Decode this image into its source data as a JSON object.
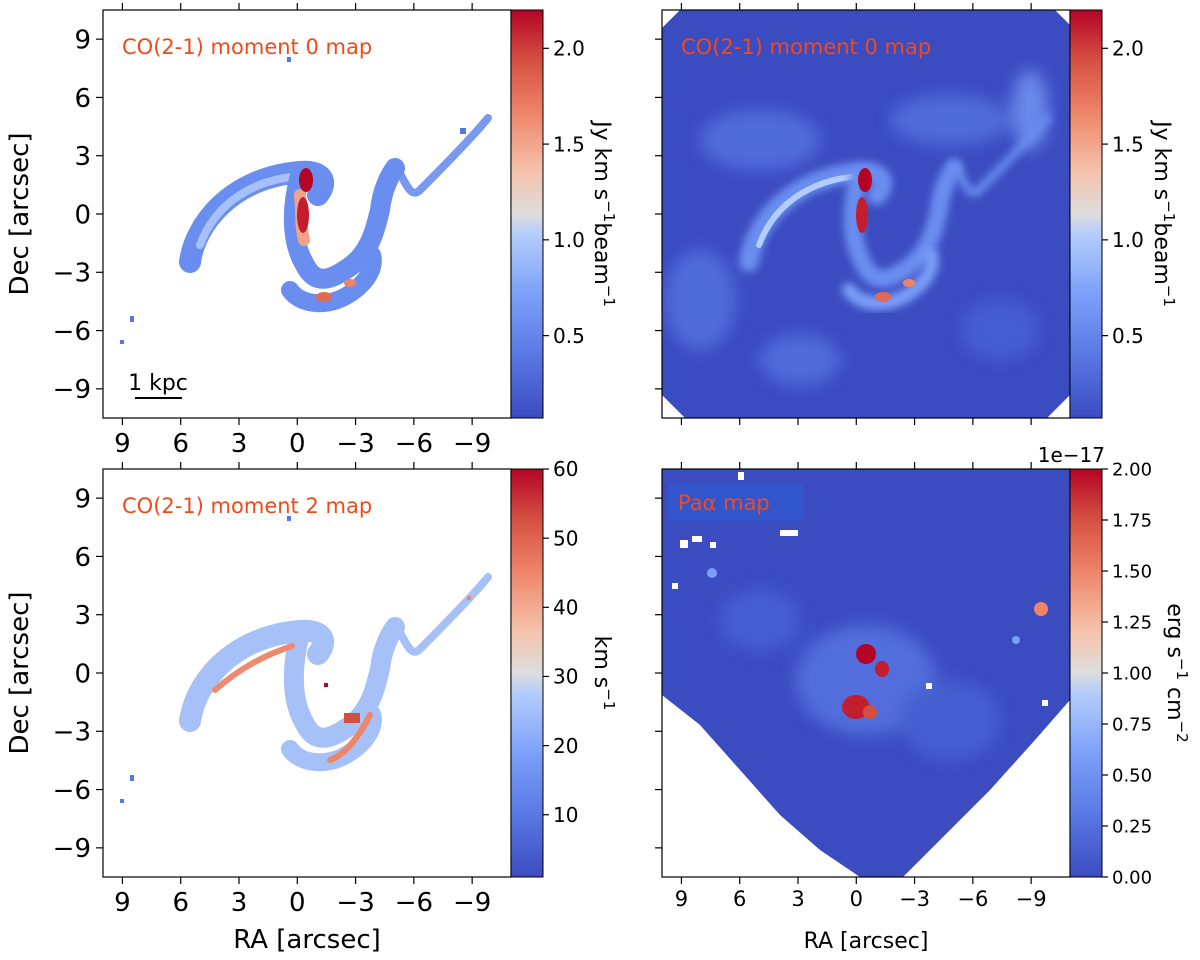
{
  "colors": {
    "map_low": "#3b4cc0",
    "map_mid": "#dddddd",
    "map_high": "#b40426",
    "label_text": "#f04a1a",
    "label_box": "#3355cc",
    "axis": "#000000"
  },
  "chart_data": [
    {
      "type": "heatmap",
      "panel": "top-left",
      "title": "CO(2-1) moment 0 map",
      "xlabel": "",
      "ylabel": "Dec [arcsec]",
      "xlim": [
        10,
        -11
      ],
      "ylim": [
        -10.5,
        10.5
      ],
      "x_ticks": [
        "9",
        "6",
        "3",
        "0",
        "−3",
        "−6",
        "−9"
      ],
      "y_ticks": [
        "9",
        "6",
        "3",
        "0",
        "−3",
        "−6",
        "−9"
      ],
      "x_tick_values": [
        9,
        6,
        3,
        0,
        -3,
        -6,
        -9
      ],
      "y_tick_values": [
        9,
        6,
        3,
        0,
        -3,
        -6,
        -9
      ],
      "background": "masked",
      "scalebar": "1 kpc",
      "colorbar": {
        "label_parts": [
          "Jy km s",
          "−1",
          "beam",
          "−1"
        ],
        "ticks": [
          "0.5",
          "1.0",
          "1.5",
          "2.0"
        ],
        "tick_values": [
          0.5,
          1.0,
          1.5,
          2.0
        ],
        "range": [
          0.07,
          2.2
        ],
        "offset": ""
      }
    },
    {
      "type": "heatmap",
      "panel": "top-right",
      "title": "CO(2-1) moment 0 map",
      "xlabel": "",
      "ylabel": "",
      "xlim": [
        10,
        -11
      ],
      "ylim": [
        -10.5,
        10.5
      ],
      "x_ticks": [],
      "y_ticks": [],
      "x_tick_values": [
        9,
        6,
        3,
        0,
        -3,
        -6,
        -9
      ],
      "y_tick_values": [
        9,
        6,
        3,
        0,
        -3,
        -6,
        -9
      ],
      "background": "filled",
      "colorbar": {
        "label_parts": [
          "Jy km s",
          "−1",
          "beam",
          "−1"
        ],
        "ticks": [
          "0.5",
          "1.0",
          "1.5",
          "2.0"
        ],
        "tick_values": [
          0.5,
          1.0,
          1.5,
          2.0
        ],
        "range": [
          0.07,
          2.2
        ],
        "offset": ""
      }
    },
    {
      "type": "heatmap",
      "panel": "bottom-left",
      "title": "CO(2-1) moment 2 map",
      "xlabel": "RA [arcsec]",
      "ylabel": "Dec [arcsec]",
      "xlim": [
        10,
        -11
      ],
      "ylim": [
        -10.5,
        10.5
      ],
      "x_ticks": [
        "9",
        "6",
        "3",
        "0",
        "−3",
        "−6",
        "−9"
      ],
      "y_ticks": [
        "9",
        "6",
        "3",
        "0",
        "−3",
        "−6",
        "−9"
      ],
      "x_tick_values": [
        9,
        6,
        3,
        0,
        -3,
        -6,
        -9
      ],
      "y_tick_values": [
        9,
        6,
        3,
        0,
        -3,
        -6,
        -9
      ],
      "background": "masked",
      "colorbar": {
        "label_parts": [
          "km s",
          "−1"
        ],
        "ticks": [
          "10",
          "20",
          "30",
          "40",
          "50",
          "60"
        ],
        "tick_values": [
          10,
          20,
          30,
          40,
          50,
          60
        ],
        "range": [
          1,
          60
        ],
        "offset": ""
      }
    },
    {
      "type": "heatmap",
      "panel": "bottom-right",
      "title": "Paα map",
      "xlabel": "RA [arcsec]",
      "ylabel": "",
      "xlim": [
        10,
        -11
      ],
      "ylim": [
        -10.5,
        10.5
      ],
      "x_ticks": [
        "9",
        "6",
        "3",
        "0",
        "−3",
        "−6",
        "−9"
      ],
      "y_ticks": [],
      "x_tick_values": [
        9,
        6,
        3,
        0,
        -3,
        -6,
        -9
      ],
      "y_tick_values": [
        9,
        6,
        3,
        0,
        -3,
        -6,
        -9
      ],
      "background": "filled-rotated",
      "colorbar": {
        "label_parts": [
          "erg s",
          "−1",
          " cm",
          "−2"
        ],
        "ticks": [
          "0.00",
          "0.25",
          "0.50",
          "0.75",
          "1.00",
          "1.25",
          "1.50",
          "1.75",
          "2.00"
        ],
        "tick_values": [
          0,
          0.25,
          0.5,
          0.75,
          1.0,
          1.25,
          1.5,
          1.75,
          2.0
        ],
        "range": [
          0,
          2.0
        ],
        "offset": "1e−17"
      }
    }
  ]
}
